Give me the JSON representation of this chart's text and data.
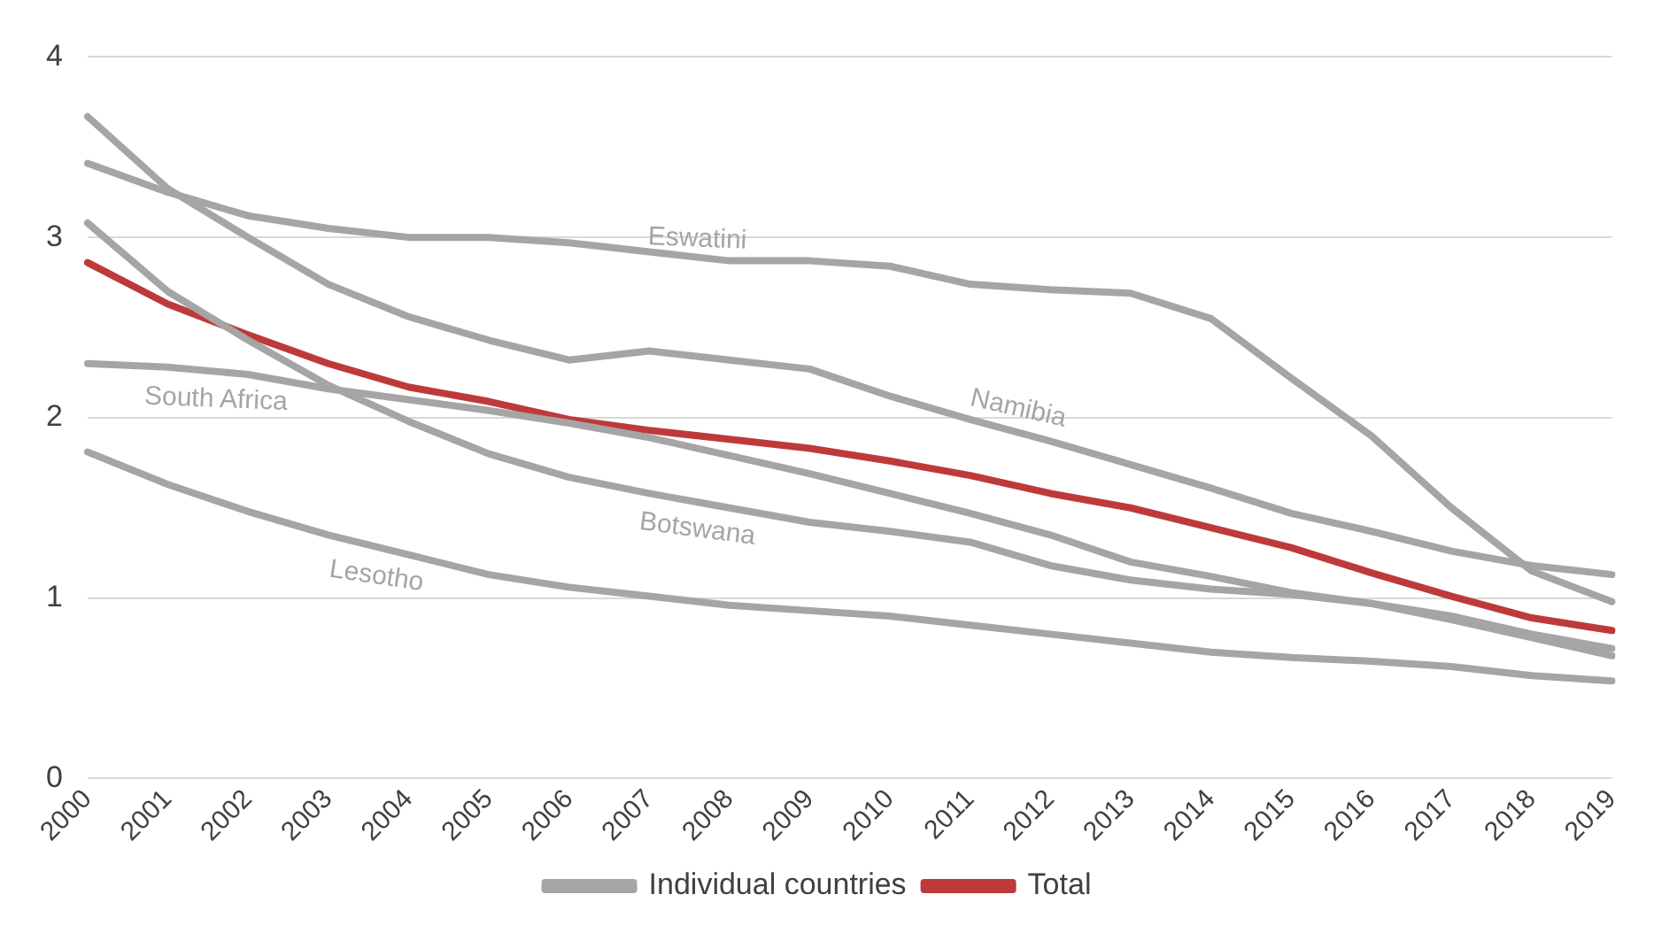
{
  "chart_data": {
    "type": "line",
    "categories": [
      "2000",
      "2001",
      "2002",
      "2003",
      "2004",
      "2005",
      "2006",
      "2007",
      "2008",
      "2009",
      "2010",
      "2011",
      "2012",
      "2013",
      "2014",
      "2015",
      "2016",
      "2017",
      "2018",
      "2019"
    ],
    "series": [
      {
        "name": "Individual countries",
        "color": "#a5a5a5",
        "values": [
          3.41,
          3.25,
          3.12,
          3.05,
          3.0,
          3.0,
          2.97,
          2.92,
          2.87,
          2.87,
          2.84,
          2.74,
          2.71,
          2.69,
          2.55,
          2.22,
          1.9,
          1.5,
          1.15,
          0.98
        ]
      },
      {
        "color": "#a5a5a5",
        "values": [
          3.67,
          3.27,
          3.0,
          2.74,
          2.56,
          2.43,
          2.32,
          2.37,
          2.32,
          2.27,
          2.12,
          1.99,
          1.87,
          1.74,
          1.61,
          1.47,
          1.37,
          1.26,
          1.18,
          1.13
        ]
      },
      {
        "color": "#a5a5a5",
        "values": [
          3.08,
          2.7,
          2.43,
          2.18,
          1.98,
          1.8,
          1.67,
          1.58,
          1.5,
          1.42,
          1.37,
          1.31,
          1.18,
          1.1,
          1.05,
          1.02,
          0.97,
          0.9,
          0.8,
          0.72
        ]
      },
      {
        "color": "#a5a5a5",
        "values": [
          2.3,
          2.28,
          2.24,
          2.16,
          2.1,
          2.04,
          1.97,
          1.89,
          1.79,
          1.69,
          1.58,
          1.47,
          1.35,
          1.2,
          1.12,
          1.03,
          0.97,
          0.88,
          0.78,
          0.68
        ]
      },
      {
        "color": "#a5a5a5",
        "values": [
          1.81,
          1.63,
          1.48,
          1.35,
          1.24,
          1.13,
          1.06,
          1.01,
          0.96,
          0.93,
          0.9,
          0.85,
          0.8,
          0.75,
          0.7,
          0.67,
          0.65,
          0.62,
          0.57,
          0.54
        ]
      },
      {
        "name": "Total",
        "color": "#be3a3a",
        "values": [
          2.86,
          2.63,
          2.46,
          2.3,
          2.17,
          2.09,
          1.99,
          1.93,
          1.88,
          1.83,
          1.76,
          1.68,
          1.58,
          1.5,
          1.39,
          1.28,
          1.14,
          1.01,
          0.89,
          0.82
        ]
      }
    ],
    "annotations": [
      "Eswatini",
      "Namibia",
      "South Africa",
      "Botswana",
      "Lesotho"
    ],
    "ylim": [
      0,
      4
    ],
    "yticks": [
      0,
      1,
      2,
      3,
      4
    ],
    "grid": "y",
    "legend": "bottom",
    "marker": "none",
    "line_style": "solid"
  }
}
